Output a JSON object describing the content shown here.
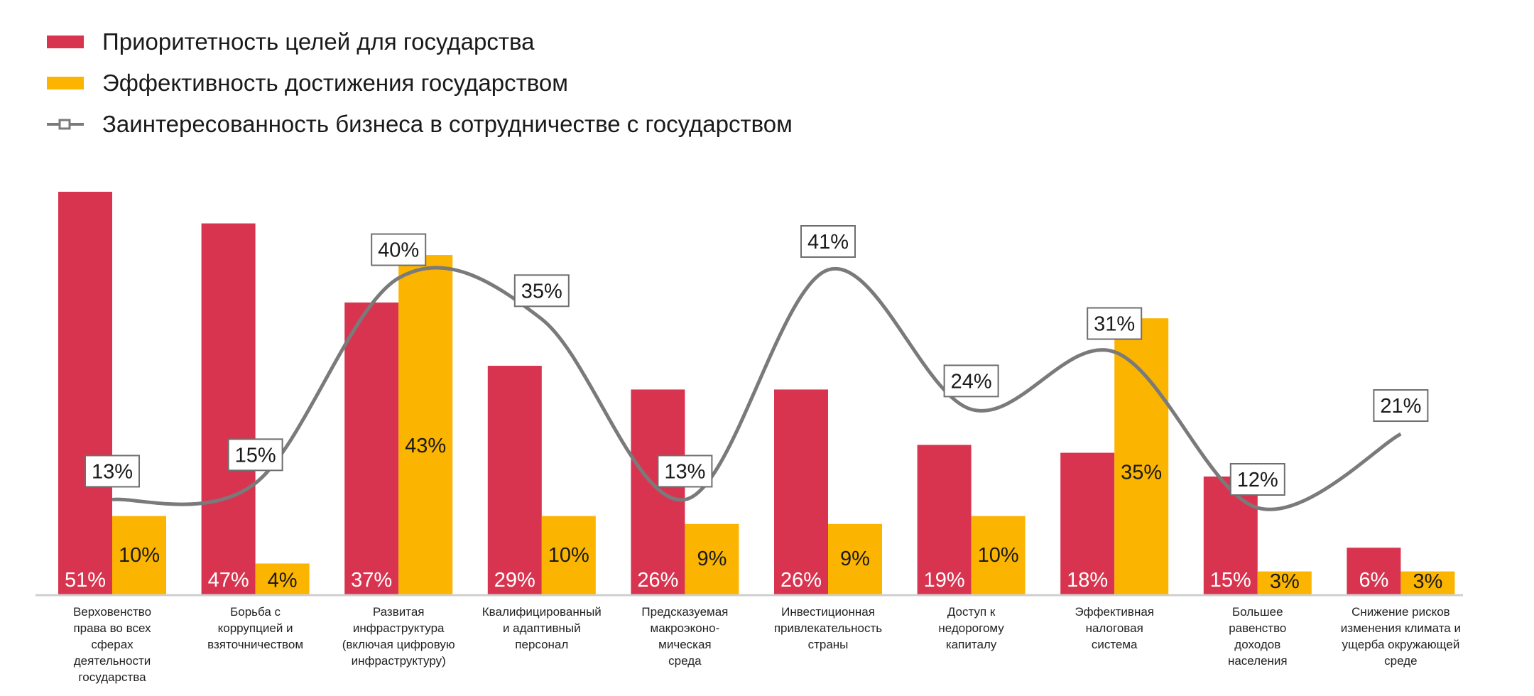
{
  "legend": {
    "priority": "Приоритетность целей для государства",
    "effectiveness": "Эффективность достижения государством",
    "interest": "Заинтересованность бизнеса в сотрудничестве с государством"
  },
  "colors": {
    "priority": "#d9344f",
    "effectiveness": "#fbb400",
    "interest": "#7a7a7a"
  },
  "chart_data": {
    "type": "bar",
    "categories": [
      "Верховенство права во всех сферах деятельности государства",
      "Борьба с коррупцией и взяточничеством",
      "Развитая инфраструктура (включая цифровую инфраструктуру)",
      "Квалифицированный и адаптивный персонал",
      "Предсказуемая макроэконо-мическая среда",
      "Инвестиционная привлекательность страны",
      "Доступ к недорогому капиталу",
      "Эффективная налоговая система",
      "Большее равенство доходов населения",
      "Снижение рисков изменения климата и ущерба окружающей среде"
    ],
    "category_lines": [
      [
        "Верховенство",
        "права во всех",
        "сферах",
        "деятельности",
        "государства"
      ],
      [
        "Борьба с",
        "коррупцией и",
        "взяточничеством"
      ],
      [
        "Развитая",
        "инфраструктура",
        "(включая цифровую",
        "инфраструктуру)"
      ],
      [
        "Квалифицированный",
        "и адаптивный",
        "персонал"
      ],
      [
        "Предсказуемая",
        "макроэконо-",
        "мическая",
        "среда"
      ],
      [
        "Инвестиционная",
        "привлекательность",
        "страны"
      ],
      [
        "Доступ к",
        "недорогому",
        "капиталу"
      ],
      [
        "Эффективная",
        "налоговая",
        "система"
      ],
      [
        "Большее",
        "равенство",
        "доходов",
        "населения"
      ],
      [
        "Снижение рисков",
        "изменения климата и",
        "ущерба окружающей",
        "среде"
      ]
    ],
    "series": [
      {
        "name": "Приоритетность целей для государства",
        "kind": "bar",
        "values": [
          51,
          47,
          37,
          29,
          26,
          26,
          19,
          18,
          15,
          6
        ],
        "labels": [
          "51%",
          "47%",
          "37%",
          "29%",
          "26%",
          "26%",
          "19%",
          "18%",
          "15%",
          "6%"
        ]
      },
      {
        "name": "Эффективность достижения государством",
        "kind": "bar",
        "values": [
          10,
          4,
          43,
          10,
          9,
          9,
          10,
          35,
          3,
          3
        ],
        "labels": [
          "10%",
          "4%",
          "43%",
          "10%",
          "9%",
          "9%",
          "10%",
          "35%",
          "3%",
          "3%"
        ]
      },
      {
        "name": "Заинтересованность бизнеса в сотрудничестве с государством",
        "kind": "line",
        "values": [
          13,
          15,
          40,
          35,
          13,
          41,
          24,
          31,
          12,
          21
        ],
        "labels": [
          "13%",
          "15%",
          "40%",
          "35%",
          "13%",
          "41%",
          "24%",
          "31%",
          "12%",
          "21%"
        ]
      }
    ],
    "grid": false,
    "legend_position": "top-left"
  }
}
